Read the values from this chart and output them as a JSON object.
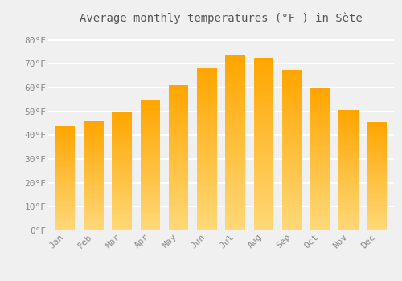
{
  "title": "Average monthly temperatures (°F ) in Sète",
  "months": [
    "Jan",
    "Feb",
    "Mar",
    "Apr",
    "May",
    "Jun",
    "Jul",
    "Aug",
    "Sep",
    "Oct",
    "Nov",
    "Dec"
  ],
  "values": [
    44,
    46,
    50,
    54.5,
    61,
    68,
    73.5,
    72.5,
    67.5,
    60,
    50.5,
    45.5
  ],
  "bar_color_top": "#FFA500",
  "bar_color_bottom": "#FFD878",
  "ylim": [
    0,
    85
  ],
  "yticks": [
    0,
    10,
    20,
    30,
    40,
    50,
    60,
    70,
    80
  ],
  "ytick_labels": [
    "0°F",
    "10°F",
    "20°F",
    "30°F",
    "40°F",
    "50°F",
    "60°F",
    "70°F",
    "80°F"
  ],
  "bg_color": "#f0f0f0",
  "grid_color": "#ffffff",
  "title_fontsize": 10,
  "tick_fontsize": 8,
  "font_color": "#888888",
  "bar_width": 0.7
}
